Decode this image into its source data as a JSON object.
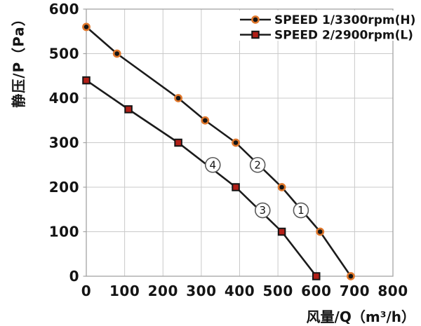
{
  "chart_data": {
    "type": "line",
    "title": "",
    "xlabel": "风量/Q（m³/h）",
    "ylabel": "静压/P（Pa）",
    "xlim": [
      0,
      800
    ],
    "ylim": [
      0,
      600
    ],
    "xticks": [
      0,
      100,
      200,
      300,
      400,
      500,
      600,
      700,
      800
    ],
    "yticks": [
      0,
      100,
      200,
      300,
      400,
      500,
      600
    ],
    "grid": true,
    "legend": {
      "position": "top-right-inside",
      "items": [
        "SPEED 1/3300rpm(H)",
        "SPEED 2/2900rpm(L)"
      ]
    },
    "series": [
      {
        "name": "SPEED 1/3300rpm(H)",
        "marker": "circle",
        "points": [
          [
            0,
            560
          ],
          [
            80,
            500
          ],
          [
            240,
            400
          ],
          [
            310,
            350
          ],
          [
            390,
            300
          ],
          [
            510,
            200
          ],
          [
            610,
            100
          ],
          [
            690,
            0
          ]
        ]
      },
      {
        "name": "SPEED 2/2900rpm(L)",
        "marker": "square",
        "points": [
          [
            0,
            440
          ],
          [
            110,
            375
          ],
          [
            240,
            300
          ],
          [
            390,
            200
          ],
          [
            510,
            100
          ],
          [
            600,
            0
          ]
        ]
      }
    ],
    "annotations": [
      {
        "label": "1",
        "x": 560,
        "y": 148
      },
      {
        "label": "2",
        "x": 447,
        "y": 250
      },
      {
        "label": "3",
        "x": 460,
        "y": 148
      },
      {
        "label": "4",
        "x": 330,
        "y": 250
      }
    ],
    "colors": {
      "line": "#1b1b1b",
      "circle_marker_fill": "#151515",
      "circle_marker_ring": "#e0772b",
      "square_marker_fill": "#b22018",
      "square_marker_border": "#151515",
      "grid": "#c9c9c9",
      "axis_border": "#a3a3a3",
      "text": "#141414",
      "annotation_border": "#5a5a5a"
    }
  }
}
